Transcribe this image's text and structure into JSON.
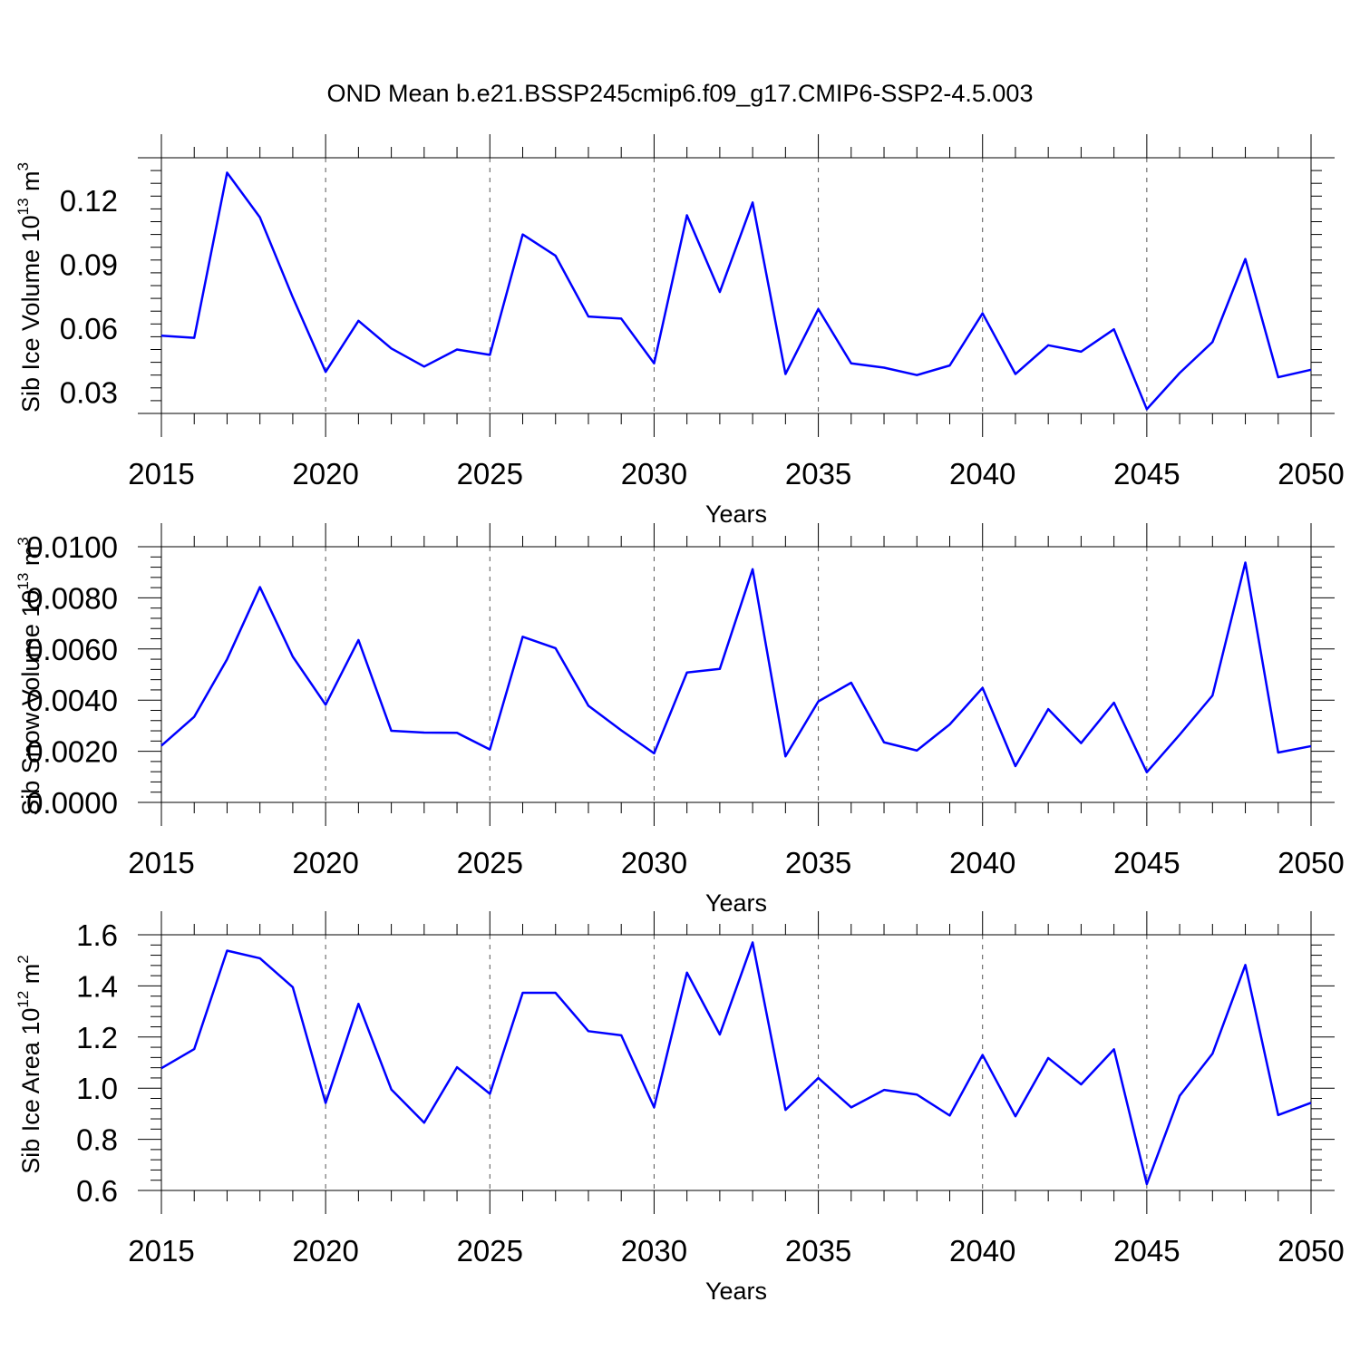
{
  "title": "OND Mean b.e21.BSSP245cmip6.f09_g17.CMIP6-SSP2-4.5.003",
  "chart_data": [
    {
      "type": "line",
      "ylabel": {
        "text": "Sib Ice Volume 10",
        "exp": "13",
        "unit": " m",
        "unit_exp": "3"
      },
      "xlabel": "Years",
      "xlim": [
        2015,
        2050
      ],
      "ylim": [
        0.02,
        0.14
      ],
      "xticks": [
        2015,
        2020,
        2025,
        2030,
        2035,
        2040,
        2045,
        2050
      ],
      "yticks": [
        0.03,
        0.06,
        0.09,
        0.12
      ],
      "ytick_labels": [
        "0.03",
        "0.06",
        "0.09",
        "0.12"
      ],
      "grid": "vertical dashed at major x ticks",
      "color": "#0000ff",
      "series": [
        {
          "x": [
            2015,
            2016,
            2017,
            2018,
            2019,
            2020,
            2021,
            2022,
            2023,
            2024,
            2025,
            2026,
            2027,
            2028,
            2029,
            2030,
            2031,
            2032,
            2033,
            2034,
            2035,
            2036,
            2037,
            2038,
            2039,
            2040,
            2041,
            2042,
            2043,
            2044,
            2045,
            2046,
            2047,
            2048,
            2049,
            2050
          ],
          "values": [
            0.0565,
            0.0555,
            0.133,
            0.112,
            0.0745,
            0.0395,
            0.0635,
            0.0505,
            0.042,
            0.05,
            0.0475,
            0.104,
            0.094,
            0.0655,
            0.0645,
            0.0435,
            0.113,
            0.077,
            0.119,
            0.0385,
            0.069,
            0.0435,
            0.0415,
            0.038,
            0.0425,
            0.067,
            0.0385,
            0.052,
            0.049,
            0.0595,
            0.022,
            0.039,
            0.0535,
            0.0925,
            0.037,
            0.0405
          ]
        }
      ]
    },
    {
      "type": "line",
      "ylabel": {
        "text": "Sib Snow Volume 10",
        "exp": "13",
        "unit": " m",
        "unit_exp": "3"
      },
      "xlabel": "Years",
      "xlim": [
        2015,
        2050
      ],
      "ylim": [
        0.0,
        0.01
      ],
      "xticks": [
        2015,
        2020,
        2025,
        2030,
        2035,
        2040,
        2045,
        2050
      ],
      "yticks": [
        0.0,
        0.002,
        0.004,
        0.006,
        0.008,
        0.01
      ],
      "ytick_labels": [
        "0.0000",
        "0.0020",
        "0.0040",
        "0.0060",
        "0.0080",
        "0.0100"
      ],
      "grid": "vertical dashed at major x ticks",
      "color": "#0000ff",
      "series": [
        {
          "x": [
            2015,
            2016,
            2017,
            2018,
            2019,
            2020,
            2021,
            2022,
            2023,
            2024,
            2025,
            2026,
            2027,
            2028,
            2029,
            2030,
            2031,
            2032,
            2033,
            2034,
            2035,
            2036,
            2037,
            2038,
            2039,
            2040,
            2041,
            2042,
            2043,
            2044,
            2045,
            2046,
            2047,
            2048,
            2049,
            2050
          ],
          "values": [
            0.00222,
            0.00335,
            0.0056,
            0.00842,
            0.0057,
            0.00382,
            0.00635,
            0.0028,
            0.00273,
            0.00272,
            0.00207,
            0.00648,
            0.00603,
            0.00378,
            0.00282,
            0.00192,
            0.00508,
            0.00522,
            0.00912,
            0.0018,
            0.00395,
            0.00468,
            0.00235,
            0.00203,
            0.00305,
            0.00448,
            0.00142,
            0.00365,
            0.00232,
            0.0039,
            0.00118,
            0.00265,
            0.00418,
            0.00938,
            0.00195,
            0.0022
          ]
        }
      ]
    },
    {
      "type": "line",
      "ylabel": {
        "text": "Sib Ice Area 10",
        "exp": "12",
        "unit": " m",
        "unit_exp": "2"
      },
      "xlabel": "Years",
      "xlim": [
        2015,
        2050
      ],
      "ylim": [
        0.6,
        1.6
      ],
      "xticks": [
        2015,
        2020,
        2025,
        2030,
        2035,
        2040,
        2045,
        2050
      ],
      "yticks": [
        0.6,
        0.8,
        1.0,
        1.2,
        1.4,
        1.6
      ],
      "ytick_labels": [
        "0.6",
        "0.8",
        "1.0",
        "1.2",
        "1.4",
        "1.6"
      ],
      "grid": "vertical dashed at major x ticks",
      "color": "#0000ff",
      "series": [
        {
          "x": [
            2015,
            2016,
            2017,
            2018,
            2019,
            2020,
            2021,
            2022,
            2023,
            2024,
            2025,
            2026,
            2027,
            2028,
            2029,
            2030,
            2031,
            2032,
            2033,
            2034,
            2035,
            2036,
            2037,
            2038,
            2039,
            2040,
            2041,
            2042,
            2043,
            2044,
            2045,
            2046,
            2047,
            2048,
            2049,
            2050
          ],
          "values": [
            1.078,
            1.153,
            1.538,
            1.508,
            1.395,
            0.942,
            1.33,
            0.995,
            0.865,
            1.082,
            0.978,
            1.373,
            1.373,
            1.223,
            1.207,
            0.925,
            1.452,
            1.21,
            1.57,
            0.915,
            1.04,
            0.925,
            0.993,
            0.975,
            0.893,
            1.13,
            0.89,
            1.118,
            1.015,
            1.152,
            0.625,
            0.97,
            1.135,
            1.482,
            0.895,
            0.943
          ]
        }
      ]
    }
  ]
}
